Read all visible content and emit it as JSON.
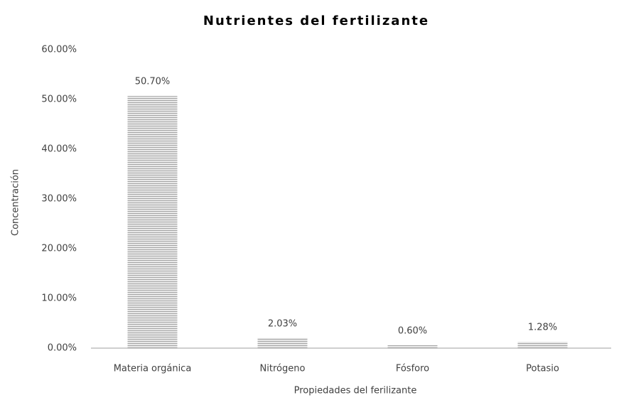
{
  "chart_data": {
    "type": "bar",
    "title": "Nutrientes del fertilizante",
    "x_label": "Propiedades del ferilizante",
    "y_label": "Concentración",
    "categories": [
      "Materia orgánica",
      "Nitrógeno",
      "Fósforo",
      "Potasio"
    ],
    "values": [
      50.7,
      2.03,
      0.6,
      1.28
    ],
    "value_labels": [
      "50.70%",
      "2.03%",
      "0.60%",
      "1.28%"
    ],
    "color": "#a6a6a6",
    "ylim": [
      0,
      60
    ],
    "yticks": [
      {
        "value": 0,
        "label": "0.00%"
      },
      {
        "value": 10,
        "label": "10.00%"
      },
      {
        "value": 20,
        "label": "20.00%"
      },
      {
        "value": 30,
        "label": "30.00%"
      },
      {
        "value": 40,
        "label": "40.00%"
      },
      {
        "value": 50,
        "label": "50.00%"
      },
      {
        "value": 60,
        "label": "60.00%"
      }
    ],
    "grid": false
  }
}
